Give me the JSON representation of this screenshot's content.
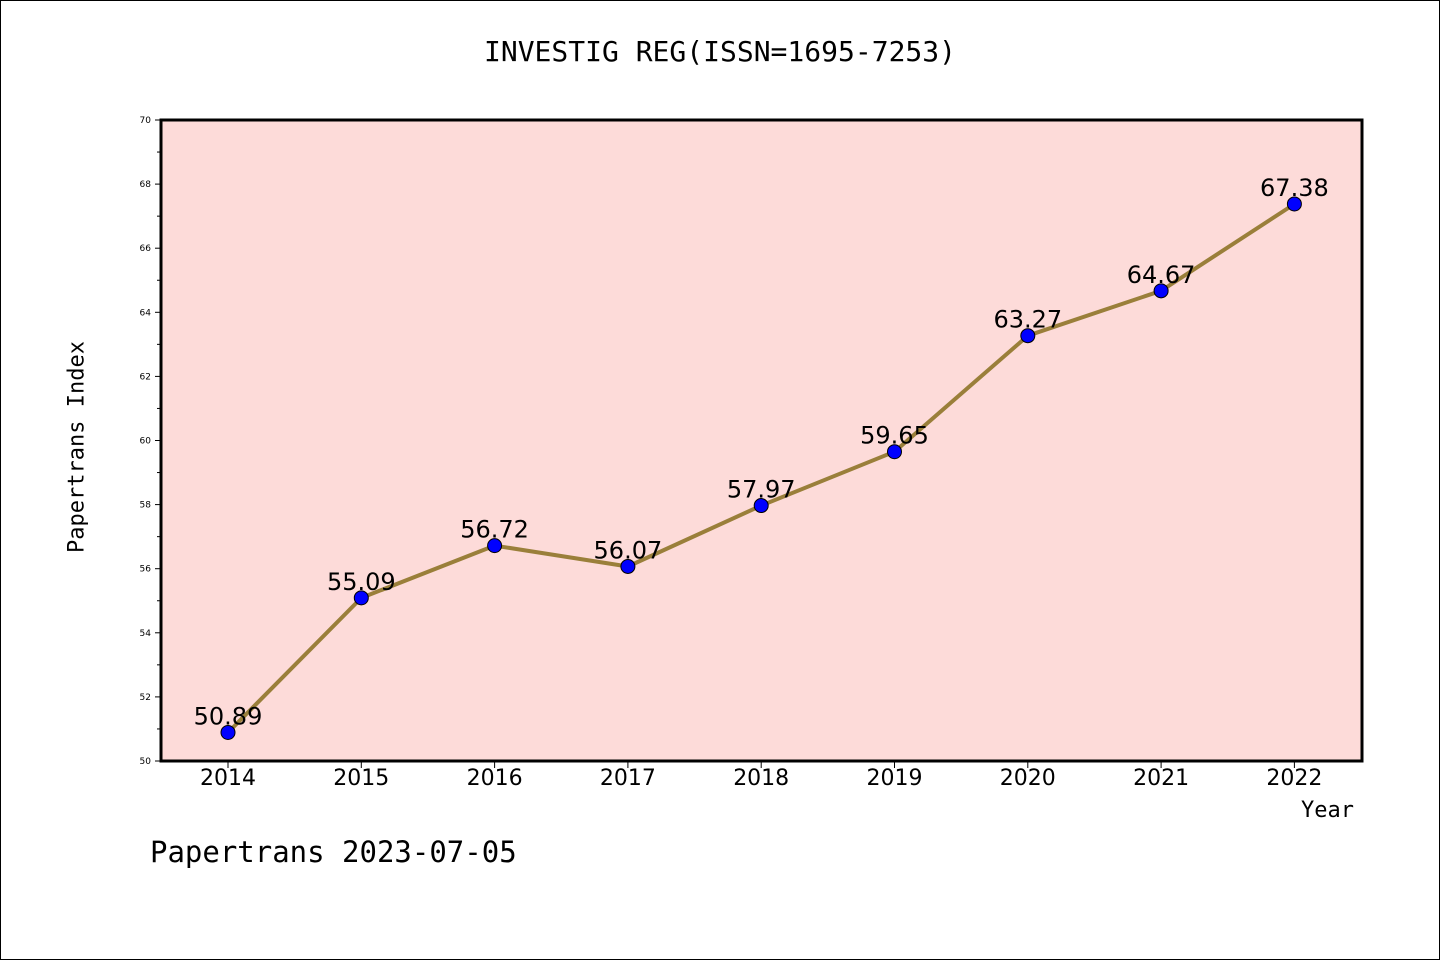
{
  "title": "INVESTIG REG(ISSN=1695-7253)",
  "footer": "Papertrans 2023-07-05",
  "colors": {
    "background": "#ffffff",
    "plot_background": "#fddbd9",
    "line": "#9a7f3a",
    "marker": "#0000ff"
  },
  "chart_data": {
    "type": "line",
    "xlabel": "Year",
    "ylabel": "Papertrans Index",
    "ylim": [
      50,
      70
    ],
    "y_ticks": [
      50,
      52,
      54,
      56,
      58,
      60,
      62,
      64,
      66,
      68,
      70
    ],
    "grid": false,
    "categories": [
      "2014",
      "2015",
      "2016",
      "2017",
      "2018",
      "2019",
      "2020",
      "2021",
      "2022"
    ],
    "values": [
      50.89,
      55.09,
      56.72,
      56.07,
      57.97,
      59.65,
      63.27,
      64.67,
      67.38
    ],
    "data_labels": [
      "50.89",
      "55.09",
      "56.72",
      "56.07",
      "57.97",
      "59.65",
      "63.27",
      "64.67",
      "67.38"
    ]
  }
}
